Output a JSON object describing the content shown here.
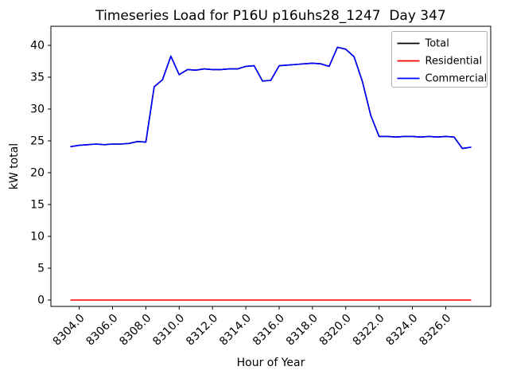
{
  "chart_data": {
    "type": "line",
    "title": "Timeseries Load for P16U p16uhs28_1247  Day 347",
    "xlabel": "Hour of Year",
    "ylabel": "kW total",
    "xlim": [
      8302.3,
      8328.7
    ],
    "ylim": [
      -1,
      43
    ],
    "grid": false,
    "legend_position": "upper right",
    "xtick_values": [
      8304,
      8306,
      8308,
      8310,
      8312,
      8314,
      8316,
      8318,
      8320,
      8322,
      8324,
      8326
    ],
    "xtick_labels": [
      "8304.0",
      "8306.0",
      "8308.0",
      "8310.0",
      "8312.0",
      "8314.0",
      "8316.0",
      "8318.0",
      "8320.0",
      "8322.0",
      "8324.0",
      "8326.0"
    ],
    "ytick_values": [
      0,
      5,
      10,
      15,
      20,
      25,
      30,
      35,
      40
    ],
    "ytick_labels": [
      "0",
      "5",
      "10",
      "15",
      "20",
      "25",
      "30",
      "35",
      "40"
    ],
    "x": [
      8303.5,
      8304.0,
      8304.5,
      8305.0,
      8305.5,
      8306.0,
      8306.5,
      8307.0,
      8307.5,
      8308.0,
      8308.5,
      8309.0,
      8309.5,
      8310.0,
      8310.5,
      8311.0,
      8311.5,
      8312.0,
      8312.5,
      8313.0,
      8313.5,
      8314.0,
      8314.5,
      8315.0,
      8315.5,
      8316.0,
      8316.5,
      8317.0,
      8317.5,
      8318.0,
      8318.5,
      8319.0,
      8319.5,
      8320.0,
      8320.5,
      8321.0,
      8321.5,
      8322.0,
      8322.5,
      8323.0,
      8323.5,
      8324.0,
      8324.5,
      8325.0,
      8325.5,
      8326.0,
      8326.5,
      8327.0,
      8327.5
    ],
    "series": [
      {
        "name": "Total",
        "color": "#000000",
        "values": [
          24.1,
          24.3,
          24.4,
          24.5,
          24.4,
          24.5,
          24.5,
          24.6,
          24.9,
          24.8,
          33.5,
          34.6,
          38.3,
          35.4,
          36.2,
          36.1,
          36.3,
          36.2,
          36.2,
          36.3,
          36.3,
          36.7,
          36.8,
          34.4,
          34.5,
          36.8,
          36.9,
          37.0,
          37.1,
          37.2,
          37.1,
          36.7,
          39.7,
          39.4,
          38.2,
          34.3,
          29.0,
          25.7,
          25.7,
          25.6,
          25.7,
          25.7,
          25.6,
          25.7,
          25.6,
          25.7,
          25.6,
          23.8,
          24.0
        ]
      },
      {
        "name": "Residential",
        "color": "#ff0000",
        "values": [
          0,
          0,
          0,
          0,
          0,
          0,
          0,
          0,
          0,
          0,
          0,
          0,
          0,
          0,
          0,
          0,
          0,
          0,
          0,
          0,
          0,
          0,
          0,
          0,
          0,
          0,
          0,
          0,
          0,
          0,
          0,
          0,
          0,
          0,
          0,
          0,
          0,
          0,
          0,
          0,
          0,
          0,
          0,
          0,
          0,
          0,
          0,
          0,
          0
        ]
      },
      {
        "name": "Commercial",
        "color": "#0000ff",
        "values": [
          24.1,
          24.3,
          24.4,
          24.5,
          24.4,
          24.5,
          24.5,
          24.6,
          24.9,
          24.8,
          33.5,
          34.6,
          38.3,
          35.4,
          36.2,
          36.1,
          36.3,
          36.2,
          36.2,
          36.3,
          36.3,
          36.7,
          36.8,
          34.4,
          34.5,
          36.8,
          36.9,
          37.0,
          37.1,
          37.2,
          37.1,
          36.7,
          39.7,
          39.4,
          38.2,
          34.3,
          29.0,
          25.7,
          25.7,
          25.6,
          25.7,
          25.7,
          25.6,
          25.7,
          25.6,
          25.7,
          25.6,
          23.8,
          24.0
        ]
      }
    ]
  }
}
